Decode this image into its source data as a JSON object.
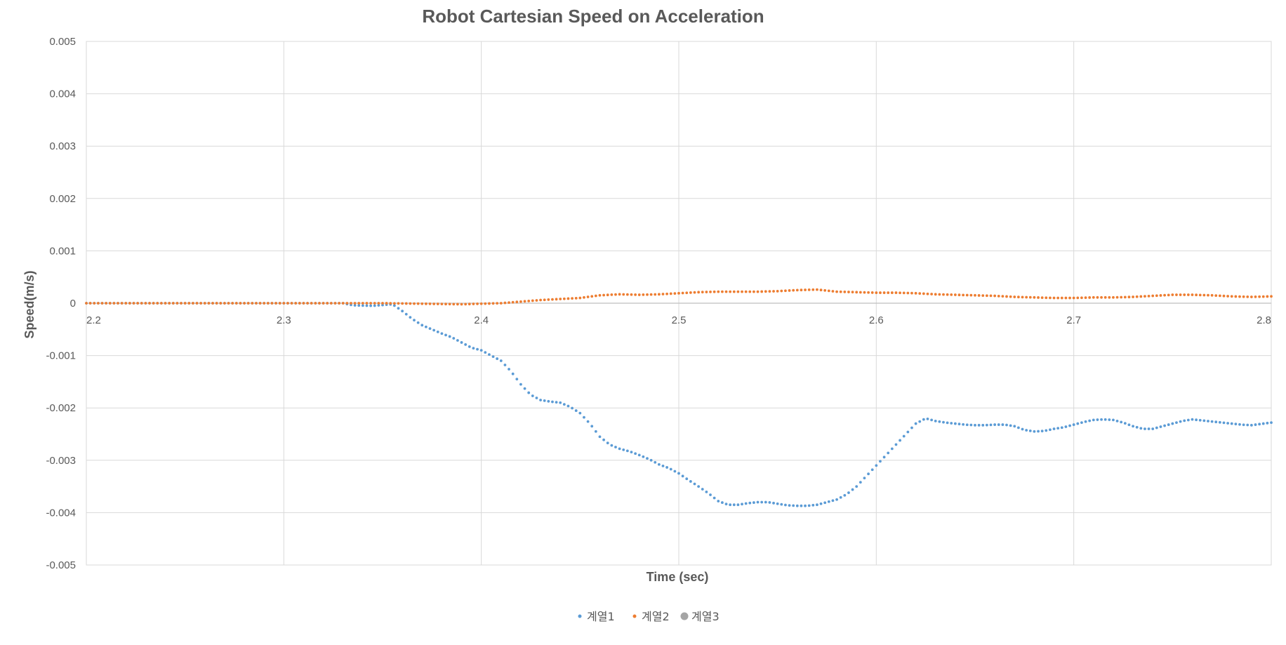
{
  "chart_data": {
    "type": "scatter",
    "title": "Robot Cartesian Speed on Acceleration",
    "xlabel": "Time (sec)",
    "ylabel": "Speed(m/s)",
    "xlim": [
      2.2,
      2.8
    ],
    "ylim": [
      -0.005,
      0.005
    ],
    "x_ticks": [
      "2.2",
      "2.3",
      "2.4",
      "2.5",
      "2.6",
      "2.7",
      "2.8"
    ],
    "y_ticks": [
      "0.005",
      "0.004",
      "0.003",
      "0.002",
      "0.001",
      "0",
      "-0.001",
      "-0.002",
      "-0.003",
      "-0.004",
      "-0.005"
    ],
    "grid": true,
    "legend_position": "bottom",
    "series": [
      {
        "name": "계열1",
        "color": "#5B9BD5",
        "points": [
          [
            2.2,
            0
          ],
          [
            2.25,
            0
          ],
          [
            2.3,
            0
          ],
          [
            2.33,
            0
          ],
          [
            2.335,
            -4e-05
          ],
          [
            2.345,
            -5e-05
          ],
          [
            2.355,
            -2e-05
          ],
          [
            2.36,
            -0.00015
          ],
          [
            2.365,
            -0.0003
          ],
          [
            2.37,
            -0.00042
          ],
          [
            2.375,
            -0.0005
          ],
          [
            2.38,
            -0.00058
          ],
          [
            2.385,
            -0.00065
          ],
          [
            2.39,
            -0.00075
          ],
          [
            2.395,
            -0.00085
          ],
          [
            2.4,
            -0.0009
          ],
          [
            2.405,
            -0.001
          ],
          [
            2.41,
            -0.0011
          ],
          [
            2.415,
            -0.0013
          ],
          [
            2.42,
            -0.00155
          ],
          [
            2.425,
            -0.00175
          ],
          [
            2.43,
            -0.00185
          ],
          [
            2.435,
            -0.00188
          ],
          [
            2.44,
            -0.0019
          ],
          [
            2.445,
            -0.00198
          ],
          [
            2.45,
            -0.0021
          ],
          [
            2.455,
            -0.0023
          ],
          [
            2.46,
            -0.00255
          ],
          [
            2.465,
            -0.0027
          ],
          [
            2.47,
            -0.00278
          ],
          [
            2.475,
            -0.00283
          ],
          [
            2.48,
            -0.0029
          ],
          [
            2.485,
            -0.00298
          ],
          [
            2.49,
            -0.00308
          ],
          [
            2.495,
            -0.00315
          ],
          [
            2.5,
            -0.00325
          ],
          [
            2.505,
            -0.00338
          ],
          [
            2.51,
            -0.0035
          ],
          [
            2.515,
            -0.00363
          ],
          [
            2.52,
            -0.00378
          ],
          [
            2.525,
            -0.00385
          ],
          [
            2.53,
            -0.00385
          ],
          [
            2.535,
            -0.00382
          ],
          [
            2.54,
            -0.0038
          ],
          [
            2.545,
            -0.0038
          ],
          [
            2.55,
            -0.00383
          ],
          [
            2.555,
            -0.00386
          ],
          [
            2.56,
            -0.00387
          ],
          [
            2.565,
            -0.00387
          ],
          [
            2.57,
            -0.00385
          ],
          [
            2.575,
            -0.0038
          ],
          [
            2.58,
            -0.00375
          ],
          [
            2.585,
            -0.00365
          ],
          [
            2.59,
            -0.0035
          ],
          [
            2.595,
            -0.0033
          ],
          [
            2.6,
            -0.0031
          ],
          [
            2.605,
            -0.0029
          ],
          [
            2.61,
            -0.0027
          ],
          [
            2.615,
            -0.0025
          ],
          [
            2.62,
            -0.0023
          ],
          [
            2.625,
            -0.0022
          ],
          [
            2.63,
            -0.00225
          ],
          [
            2.635,
            -0.00228
          ],
          [
            2.64,
            -0.0023
          ],
          [
            2.645,
            -0.00232
          ],
          [
            2.65,
            -0.00233
          ],
          [
            2.655,
            -0.00233
          ],
          [
            2.66,
            -0.00232
          ],
          [
            2.665,
            -0.00232
          ],
          [
            2.67,
            -0.00235
          ],
          [
            2.675,
            -0.00242
          ],
          [
            2.68,
            -0.00245
          ],
          [
            2.685,
            -0.00244
          ],
          [
            2.69,
            -0.0024
          ],
          [
            2.695,
            -0.00237
          ],
          [
            2.7,
            -0.00232
          ],
          [
            2.705,
            -0.00227
          ],
          [
            2.71,
            -0.00223
          ],
          [
            2.715,
            -0.00222
          ],
          [
            2.72,
            -0.00223
          ],
          [
            2.725,
            -0.00228
          ],
          [
            2.73,
            -0.00235
          ],
          [
            2.735,
            -0.0024
          ],
          [
            2.74,
            -0.0024
          ],
          [
            2.745,
            -0.00235
          ],
          [
            2.75,
            -0.0023
          ],
          [
            2.755,
            -0.00225
          ],
          [
            2.76,
            -0.00222
          ],
          [
            2.765,
            -0.00224
          ],
          [
            2.77,
            -0.00226
          ],
          [
            2.775,
            -0.00228
          ],
          [
            2.78,
            -0.0023
          ],
          [
            2.785,
            -0.00232
          ],
          [
            2.79,
            -0.00233
          ],
          [
            2.8,
            -0.00228
          ]
        ]
      },
      {
        "name": "계열2",
        "color": "#ED7D31",
        "points": [
          [
            2.2,
            0
          ],
          [
            2.25,
            0
          ],
          [
            2.3,
            0
          ],
          [
            2.35,
            0
          ],
          [
            2.37,
            -1e-05
          ],
          [
            2.39,
            -2e-05
          ],
          [
            2.4,
            -1e-05
          ],
          [
            2.41,
            0
          ],
          [
            2.42,
            3e-05
          ],
          [
            2.43,
            6e-05
          ],
          [
            2.44,
            8e-05
          ],
          [
            2.45,
            0.0001
          ],
          [
            2.46,
            0.00015
          ],
          [
            2.47,
            0.00017
          ],
          [
            2.48,
            0.00016
          ],
          [
            2.49,
            0.00017
          ],
          [
            2.5,
            0.00019
          ],
          [
            2.51,
            0.00021
          ],
          [
            2.52,
            0.00022
          ],
          [
            2.53,
            0.00022
          ],
          [
            2.54,
            0.00022
          ],
          [
            2.55,
            0.00023
          ],
          [
            2.56,
            0.00025
          ],
          [
            2.57,
            0.00026
          ],
          [
            2.58,
            0.00022
          ],
          [
            2.59,
            0.00021
          ],
          [
            2.6,
            0.0002
          ],
          [
            2.61,
            0.0002
          ],
          [
            2.62,
            0.00019
          ],
          [
            2.63,
            0.00017
          ],
          [
            2.64,
            0.00016
          ],
          [
            2.65,
            0.00015
          ],
          [
            2.66,
            0.00014
          ],
          [
            2.67,
            0.00012
          ],
          [
            2.68,
            0.00011
          ],
          [
            2.69,
            0.0001
          ],
          [
            2.7,
            0.0001
          ],
          [
            2.71,
            0.00011
          ],
          [
            2.72,
            0.00011
          ],
          [
            2.73,
            0.00012
          ],
          [
            2.74,
            0.00014
          ],
          [
            2.75,
            0.00016
          ],
          [
            2.76,
            0.00016
          ],
          [
            2.77,
            0.00015
          ],
          [
            2.78,
            0.00013
          ],
          [
            2.79,
            0.00012
          ],
          [
            2.8,
            0.00013
          ]
        ]
      },
      {
        "name": "계열3",
        "color": "#A5A5A5",
        "points": []
      }
    ]
  }
}
